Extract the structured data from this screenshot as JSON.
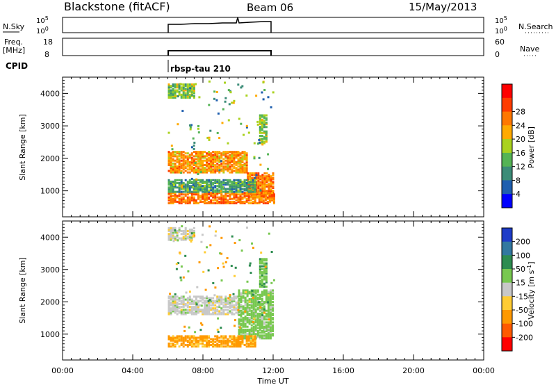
{
  "header": {
    "title": "Blackstone (fitACF)",
    "beam": "Beam 06",
    "date": "15/May/2013"
  },
  "noise_panel": {
    "left_label": "N.Sky",
    "right_label": "N.Search",
    "tick_top": "10^5",
    "tick_bottom": "10^0"
  },
  "freq_panel": {
    "left_label_top": "Freq.",
    "left_label_bottom": "[MHz]",
    "right_label": "Nave",
    "left_ticks": [
      "18",
      "8"
    ],
    "right_ticks": [
      "60",
      "0"
    ]
  },
  "cpid": {
    "label": "CPID",
    "value": "rbsp-tau 210"
  },
  "time_axis": {
    "label": "Time UT",
    "ticks": [
      "00:00",
      "04:00",
      "08:00",
      "12:00",
      "16:00",
      "20:00",
      "00:00"
    ]
  },
  "chart_data": [
    {
      "type": "heatmap",
      "panel": "power",
      "ylabel": "Slant Range [km]",
      "yticks": [
        "1000",
        "2000",
        "3000",
        "4000"
      ],
      "ylim": [
        200,
        4500
      ],
      "xlim_hours": [
        0,
        24
      ],
      "data_coverage_hours": [
        6.0,
        12.0
      ],
      "colorbar": {
        "label": "Power [dB]",
        "ticks": [
          "4",
          "8",
          "12",
          "16",
          "20",
          "24",
          "28"
        ],
        "colors": [
          "#0000ff",
          "#1f5faf",
          "#3c8c78",
          "#55b455",
          "#aad21e",
          "#ffaa00",
          "#ff7800",
          "#ff3c00",
          "#ff0000"
        ]
      },
      "echo_regions": [
        {
          "start_h": 6.0,
          "end_h": 10.5,
          "range_km": [
            1600,
            2250
          ],
          "power_db": 24
        },
        {
          "start_h": 10.5,
          "end_h": 12.0,
          "range_km": [
            850,
            1600
          ],
          "power_db": 26
        },
        {
          "start_h": 6.0,
          "end_h": 12.0,
          "range_km": [
            650,
            1000
          ],
          "power_db": 26
        },
        {
          "start_h": 6.0,
          "end_h": 11.0,
          "range_km": [
            1000,
            1400
          ],
          "power_db": 12
        },
        {
          "start_h": 6.0,
          "end_h": 7.5,
          "range_km": [
            3900,
            4350
          ],
          "power_db": 16
        },
        {
          "start_h": 11.2,
          "end_h": 11.6,
          "range_km": [
            2500,
            3400
          ],
          "power_db": 16
        }
      ]
    },
    {
      "type": "heatmap",
      "panel": "velocity",
      "ylabel": "Slant Range [km]",
      "yticks": [
        "1000",
        "2000",
        "3000",
        "4000"
      ],
      "ylim": [
        200,
        4500
      ],
      "xlim_hours": [
        0,
        24
      ],
      "data_coverage_hours": [
        6.0,
        12.0
      ],
      "colorbar": {
        "label": "Velocity [m s^-1]",
        "ticks": [
          "200",
          "100",
          "50",
          "15",
          "-15",
          "-50",
          "-100",
          "-200"
        ],
        "colors": [
          "#1e3cc8",
          "#3278a0",
          "#2d8c50",
          "#78c850",
          "#c8c8c8",
          "#ffcc33",
          "#ff9900",
          "#ff5a00",
          "#ff0000"
        ]
      },
      "echo_regions": [
        {
          "start_h": 6.0,
          "end_h": 10.0,
          "range_km": [
            1650,
            2200
          ],
          "velocity_ms": 0
        },
        {
          "start_h": 10.0,
          "end_h": 12.0,
          "range_km": [
            900,
            2400
          ],
          "velocity_ms": 30
        },
        {
          "start_h": 6.0,
          "end_h": 11.0,
          "range_km": [
            650,
            1000
          ],
          "velocity_ms": -60
        },
        {
          "start_h": 6.0,
          "end_h": 7.5,
          "range_km": [
            3950,
            4350
          ],
          "velocity_ms": 0
        },
        {
          "start_h": 11.2,
          "end_h": 11.6,
          "range_km": [
            2500,
            3400
          ],
          "velocity_ms": 40
        }
      ]
    }
  ]
}
